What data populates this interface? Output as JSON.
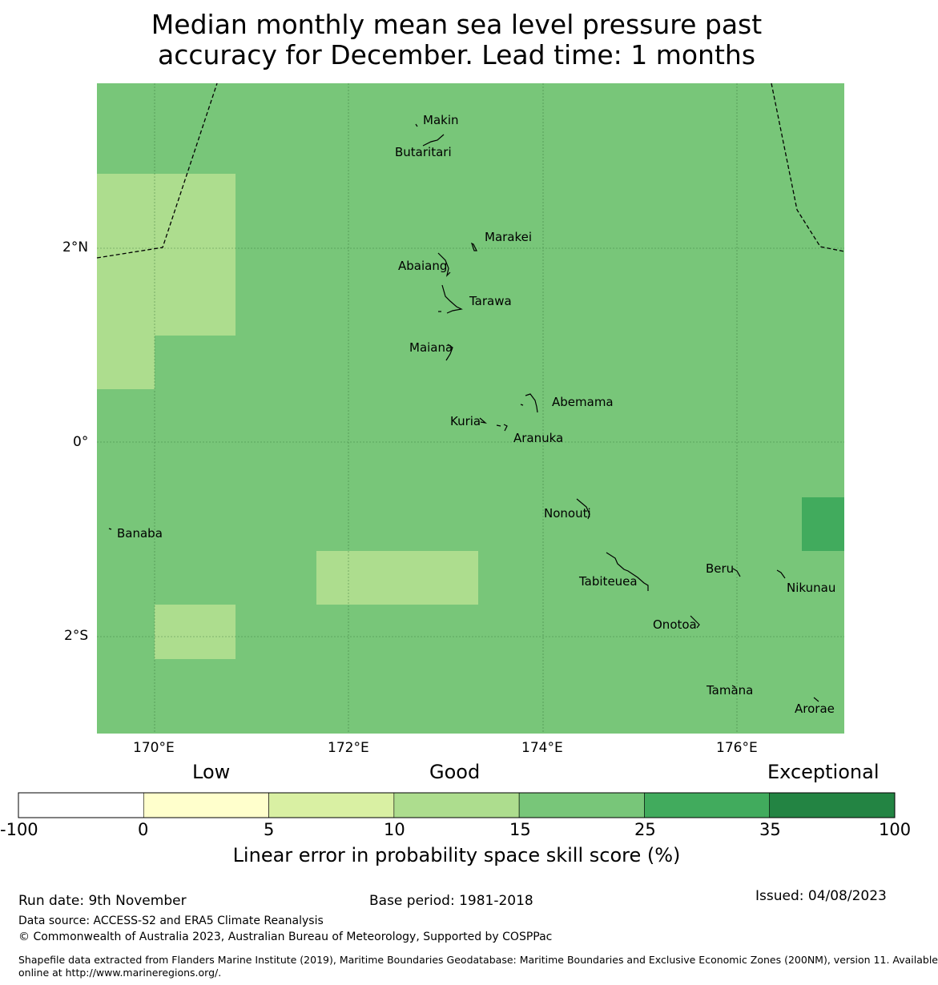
{
  "title_line1": "Median monthly mean sea level pressure past",
  "title_line2": "accuracy for December. Lead time: 1 months",
  "map": {
    "lat_labels": [
      "2°N",
      "0°",
      "2°S"
    ],
    "lon_labels": [
      "170°E",
      "172°E",
      "174°E",
      "176°E"
    ],
    "background_color": "#78c679",
    "islands": [
      "Makin",
      "Butaritari",
      "Marakei",
      "Abaiang",
      "Tarawa",
      "Maiana",
      "Abemama",
      "Kuria",
      "Aranuka",
      "Nonouti",
      "Banaba",
      "Beru",
      "Tabiteuea",
      "Nikunau",
      "Onotoa",
      "Tamana",
      "Arorae"
    ]
  },
  "legend": {
    "category_labels": [
      "Low",
      "Good",
      "Exceptional"
    ],
    "bins": [
      {
        "from": -100,
        "to": 0,
        "color": "#ffffff"
      },
      {
        "from": 0,
        "to": 5,
        "color": "#ffffcc"
      },
      {
        "from": 5,
        "to": 10,
        "color": "#d9f0a3"
      },
      {
        "from": 10,
        "to": 15,
        "color": "#addd8e"
      },
      {
        "from": 15,
        "to": 25,
        "color": "#78c679"
      },
      {
        "from": 25,
        "to": 35,
        "color": "#41ab5d"
      },
      {
        "from": 35,
        "to": 100,
        "color": "#238443"
      }
    ],
    "tick_labels": [
      "-100",
      "0",
      "5",
      "10",
      "15",
      "25",
      "35",
      "100"
    ],
    "axis_label": "Linear error in probability space skill score (%)"
  },
  "footer": {
    "run_date": "Run date: 9th November",
    "base_period": "Base period: 1981-2018",
    "issued": "Issued: 04/08/2023",
    "data_source": "Data source: ACCESS-S2 and ERA5 Climate Reanalysis",
    "copyright": "© Commonwealth of Australia 2023, Australian Bureau of Meteorology, Supported by COSPPac",
    "shapefile_line1": "Shapefile data extracted from Flanders Marine Institute (2019), Maritime Boundaries Geodatabase: Maritime Boundaries and Exclusive Economic Zones (200NM), version 11. Available",
    "shapefile_line2": "online at http://www.marineregions.org/."
  }
}
